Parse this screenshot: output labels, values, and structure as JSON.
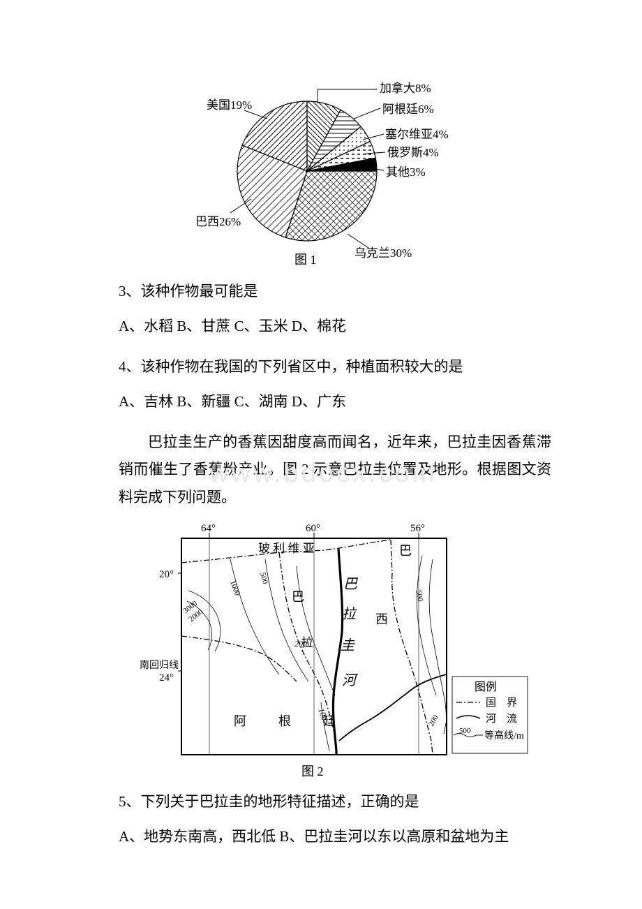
{
  "pie": {
    "caption": "图 1",
    "labels": {
      "canada": "加拿大8%",
      "argentina": "阿根廷6%",
      "serbia": "塞尔维亚4%",
      "russia": "俄罗斯4%",
      "other": "其他3%",
      "usa": "美国19%",
      "brazil": "巴西26%",
      "ukraine": "乌克兰30%"
    },
    "slices": [
      {
        "name": "canada",
        "pct": 8,
        "pattern": "diag2"
      },
      {
        "name": "argentina",
        "pct": 6,
        "pattern": "horiz"
      },
      {
        "name": "serbia",
        "pct": 4,
        "pattern": "dots"
      },
      {
        "name": "russia",
        "pct": 4,
        "pattern": "dash"
      },
      {
        "name": "other",
        "pct": 3,
        "pattern": "solid"
      },
      {
        "name": "ukraine",
        "pct": 30,
        "pattern": "cross"
      },
      {
        "name": "brazil",
        "pct": 26,
        "pattern": "diag3"
      },
      {
        "name": "usa",
        "pct": 19,
        "pattern": "diag1"
      }
    ]
  },
  "q3": {
    "text": "3、该种作物最可能是",
    "opts": "A、水稻 B、甘蔗 C、玉米 D、棉花"
  },
  "q4": {
    "text": "4、该种作物在我国的下列省区中，种植面积较大的是",
    "opts": "A、吉林 B、新疆 C、湖南 D、广东"
  },
  "passage": "巴拉圭生产的香蕉因甜度高而闻名，近年来，巴拉圭因香蕉滞销而催生了香蕉粉产业。图 2 示意巴拉圭位置及地形。根据图文资料完成下列问题。",
  "watermark": "www.bdocx.com",
  "map": {
    "caption": "图 2",
    "lon": {
      "l64": "64°",
      "l60": "60°",
      "l56": "56°"
    },
    "lat": {
      "l20": "20°",
      "l24_label": "南回归线",
      "l24": "24°"
    },
    "countries": {
      "bolivia": "玻 利 维 亚",
      "brazil1": "巴",
      "brazil2": "西",
      "para1": "巴",
      "para2": "拉",
      "para3": "圭",
      "river": "河",
      "argentina": "阿　根　廷"
    },
    "contours": {
      "c3000": "3000",
      "c2000": "2000",
      "c1000a": "1000",
      "c500a": "500",
      "c200a": "200",
      "c100a": "100",
      "c500b": "500",
      "c200b": "200"
    },
    "legend": {
      "title": "图例",
      "border": "国　界",
      "river": "河　流",
      "contour_sym": "500",
      "contour": "等高线/m"
    }
  },
  "q5": {
    "text": "5、下列关于巴拉圭的地形特征描述，正确的是",
    "opts": "A、地势东南高，西北低 B、巴拉圭河以东以高原和盆地为主"
  }
}
